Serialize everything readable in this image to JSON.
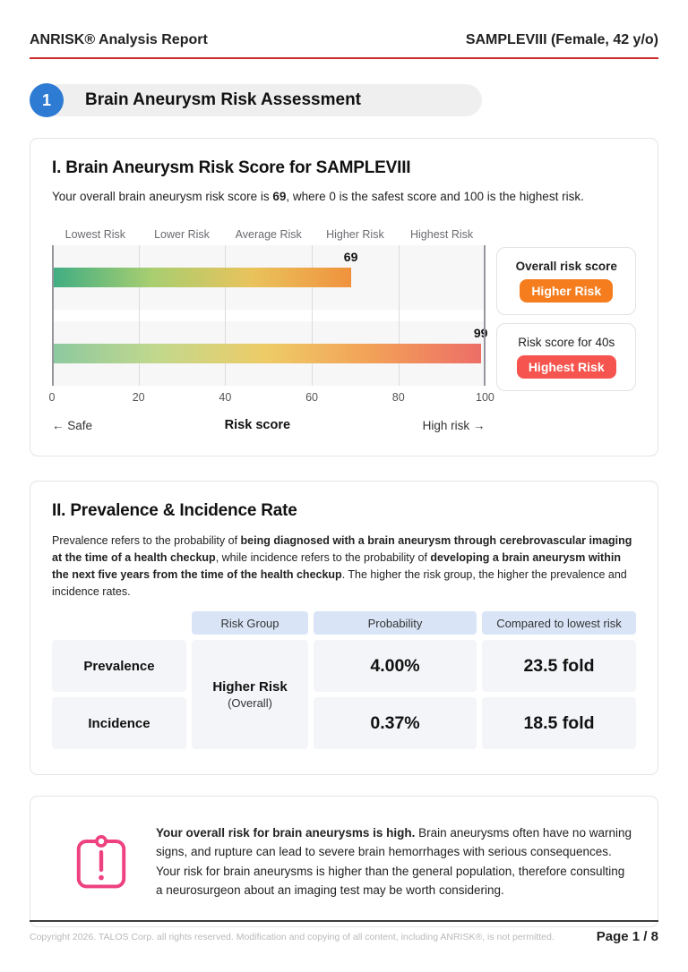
{
  "header": {
    "title": "ANRISK® Analysis Report",
    "patient": "SAMPLEVIII (Female, 42 y/o)",
    "rule_color": "#ce2b28"
  },
  "section_badge": {
    "number": "1",
    "title": "Brain Aneurysm Risk Assessment",
    "badge_color": "#2e7bd3"
  },
  "risk_score_section": {
    "heading": "I. Brain Aneurysm Risk Score for SAMPLEVIII",
    "intro_pre": "Your overall brain aneurysm risk score is ",
    "intro_bold": "69",
    "intro_post": ", where 0 is the safest score and 100 is the highest risk.",
    "cards": [
      {
        "label": "Overall risk score",
        "badge": "Higher Risk",
        "badge_color": "#f57d1e"
      },
      {
        "label": "Risk score for 40s",
        "badge": "Highest Risk",
        "badge_color": "#f6554f"
      }
    ],
    "axis": {
      "safe_label": "← Safe",
      "axis_label": "Risk score",
      "high_label": "High risk →"
    }
  },
  "chart_data": {
    "type": "bar",
    "orientation": "horizontal",
    "title": "Brain Aneurysm Risk Score",
    "categories": [
      "Overall risk score",
      "Risk score for 40s"
    ],
    "risk_levels": [
      "Lowest Risk",
      "Lower Risk",
      "Average Risk",
      "Higher Risk",
      "Highest Risk"
    ],
    "xticks": [
      "0",
      "20",
      "40",
      "60",
      "80",
      "100"
    ],
    "xlim": [
      0,
      100
    ],
    "xlabel": "Risk score",
    "grid": true,
    "bars": [
      {
        "name": "Overall risk score",
        "value": 69,
        "gradient": [
          "#3fad83",
          "#a8ce70",
          "#e9c35c",
          "#f0923d"
        ]
      },
      {
        "name": "Risk score for 40s",
        "value": 99,
        "gradient": [
          "#8cc9a0",
          "#c3d88c",
          "#eecb66",
          "#f2a058",
          "#ed6e67"
        ]
      }
    ]
  },
  "prevalence_section": {
    "heading": "II. Prevalence & Incidence Rate",
    "desc": {
      "s1": "Prevalence refers to the probability of ",
      "s2": "being diagnosed with a brain aneurysm through cerebrovascular imaging at the time of a health checkup",
      "s3": ", while incidence refers to the probability of ",
      "s4": "developing a brain aneurysm within the next five years from the time of the health checkup",
      "s5": ". The higher the risk group, the higher the prevalence and incidence rates."
    },
    "table": {
      "headers": [
        "Risk Group",
        "Probability",
        "Compared to lowest risk"
      ],
      "risk_group": "Higher Risk",
      "risk_group_sub": "(Overall)",
      "header_bg": "#d9e5f7",
      "rows": [
        {
          "label": "Prevalence",
          "probability": "4.00%",
          "compared": "23.5 fold"
        },
        {
          "label": "Incidence",
          "probability": "0.37%",
          "compared": "18.5 fold"
        }
      ]
    }
  },
  "warning": {
    "icon_color": "#ee4180",
    "bold": "Your overall risk for brain aneurysms is high.",
    "text": " Brain aneurysms often have no warning signs, and rupture can lead to severe brain hemorrhages with serious consequences. Your risk for brain aneurysms is higher than the general population, therefore consulting a neurosurgeon about an imaging test may be worth considering."
  },
  "footer": {
    "copyright": "Copyright 2026. TALOS Corp. all rights reserved. Modification and copying of all content, including ANRISK®, is not permitted.",
    "page": "Page 1 / 8"
  }
}
